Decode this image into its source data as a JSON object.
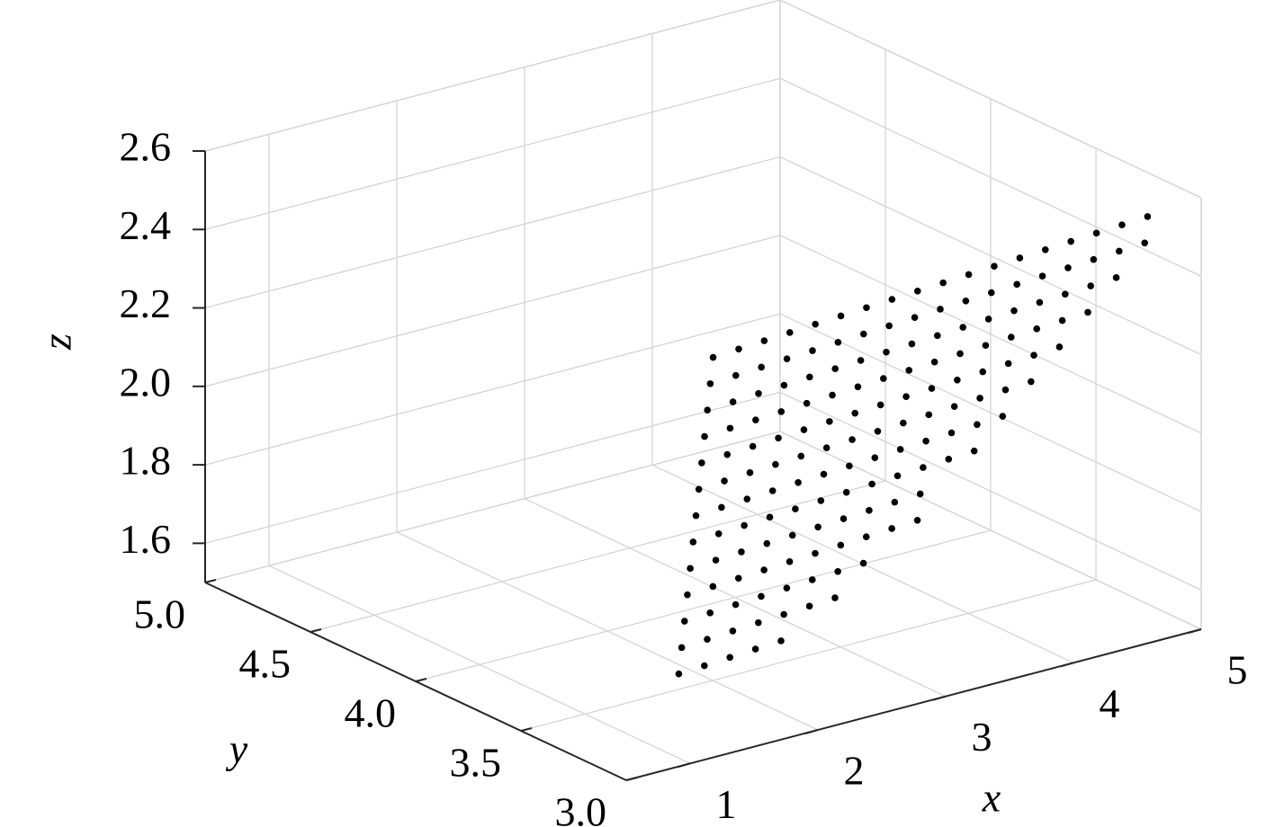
{
  "chart_data": {
    "type": "scatter3d",
    "color": "#000000",
    "grid": true,
    "xlabel": "x",
    "ylabel": "y",
    "zlabel": "z",
    "xlim": [
      0.5,
      5
    ],
    "ylim": [
      3,
      5
    ],
    "zlim": [
      1.5,
      2.6
    ],
    "xticks": [
      1,
      2,
      3,
      4,
      5
    ],
    "yticks": [
      {
        "value": 3,
        "label": "3.0"
      },
      3.5,
      {
        "value": 4,
        "label": "4.0"
      },
      4.5,
      {
        "value": 5,
        "label": "5.0"
      }
    ],
    "zticks": [
      1.6,
      1.8,
      {
        "value": 2,
        "label": "2.0"
      },
      2.2,
      2.4,
      2.6
    ],
    "x": [
      1.9,
      1.84,
      1.78,
      1.72,
      1.66,
      1.6,
      1.54,
      1.48,
      1.42,
      1.36,
      1.3,
      1.24,
      1.18,
      2.1,
      2.04,
      1.98,
      1.92,
      1.86,
      1.8,
      1.74,
      1.68,
      1.62,
      1.56,
      1.5,
      1.44,
      1.38,
      2.3,
      2.24,
      2.18,
      2.12,
      2.06,
      2,
      1.94,
      1.88,
      1.82,
      1.76,
      1.7,
      1.64,
      1.58,
      2.5,
      2.44,
      2.38,
      2.32,
      2.26,
      2.2,
      2.14,
      2.08,
      2.02,
      1.96,
      1.9,
      1.84,
      1.78,
      2.7,
      2.64,
      2.58,
      2.52,
      2.46,
      2.4,
      2.34,
      2.28,
      2.22,
      2.16,
      2.1,
      2.04,
      1.98,
      2.84,
      2.78,
      2.72,
      2.66,
      2.6,
      2.54,
      2.48,
      2.42,
      2.36,
      2.3,
      2.24,
      2.18,
      3.04,
      2.98,
      2.92,
      2.86,
      2.8,
      2.74,
      2.68,
      2.62,
      2.56,
      2.5,
      2.44,
      2.38,
      3.18,
      3.12,
      3.06,
      3,
      2.94,
      2.88,
      2.82,
      2.76,
      2.7,
      2.64,
      2.58,
      3.32,
      3.26,
      3.2,
      3.14,
      3.08,
      3.02,
      2.96,
      2.9,
      2.84,
      2.78,
      3.52,
      3.46,
      3.4,
      3.34,
      3.28,
      3.22,
      3.16,
      3.1,
      3.04,
      2.98,
      3.6,
      3.54,
      3.48,
      3.42,
      3.36,
      3.3,
      3.24,
      3.18,
      3.8,
      3.74,
      3.68,
      3.62,
      3.56,
      3.5,
      3.44,
      3.38,
      3.94,
      3.88,
      3.82,
      3.76,
      3.7,
      3.64,
      3.58,
      4.08,
      4.02,
      3.96,
      3.9,
      3.84,
      3.78,
      4.22,
      4.16,
      4.1,
      4.04,
      3.98,
      4.36,
      4.3,
      4.24,
      4.18,
      4.5,
      4.44,
      4.38,
      4.64,
      4.58
    ],
    "y": [
      3.6,
      3.55,
      3.5,
      3.45,
      3.4,
      3.35,
      3.3,
      3.25,
      3.2,
      3.15,
      3.1,
      3.05,
      3,
      3.6,
      3.55,
      3.5,
      3.45,
      3.4,
      3.35,
      3.3,
      3.25,
      3.2,
      3.15,
      3.1,
      3.05,
      3,
      3.6,
      3.55,
      3.5,
      3.45,
      3.4,
      3.35,
      3.3,
      3.25,
      3.2,
      3.15,
      3.1,
      3.05,
      3,
      3.6,
      3.55,
      3.5,
      3.45,
      3.4,
      3.35,
      3.3,
      3.25,
      3.2,
      3.15,
      3.1,
      3.05,
      3,
      3.6,
      3.55,
      3.5,
      3.45,
      3.4,
      3.35,
      3.3,
      3.25,
      3.2,
      3.15,
      3.1,
      3.05,
      3,
      3.55,
      3.5,
      3.45,
      3.4,
      3.35,
      3.3,
      3.25,
      3.2,
      3.15,
      3.1,
      3.05,
      3,
      3.55,
      3.5,
      3.45,
      3.4,
      3.35,
      3.3,
      3.25,
      3.2,
      3.15,
      3.1,
      3.05,
      3,
      3.5,
      3.45,
      3.4,
      3.35,
      3.3,
      3.25,
      3.2,
      3.15,
      3.1,
      3.05,
      3,
      3.45,
      3.4,
      3.35,
      3.3,
      3.25,
      3.2,
      3.15,
      3.1,
      3.05,
      3,
      3.45,
      3.4,
      3.35,
      3.3,
      3.25,
      3.2,
      3.15,
      3.1,
      3.05,
      3,
      3.35,
      3.3,
      3.25,
      3.2,
      3.15,
      3.1,
      3.05,
      3,
      3.35,
      3.3,
      3.25,
      3.2,
      3.15,
      3.1,
      3.05,
      3,
      3.3,
      3.25,
      3.2,
      3.15,
      3.1,
      3.05,
      3,
      3.25,
      3.2,
      3.15,
      3.1,
      3.05,
      3,
      3.2,
      3.15,
      3.1,
      3.05,
      3,
      3.15,
      3.1,
      3.05,
      3,
      3.1,
      3.05,
      3,
      3.05,
      3
    ],
    "z": [
      1.5,
      1.585,
      1.67,
      1.755,
      1.84,
      1.925,
      2.01,
      2.095,
      2.18,
      2.265,
      2.35,
      2.435,
      2.52,
      1.504,
      1.589,
      1.674,
      1.759,
      1.844,
      1.929,
      2.014,
      2.099,
      2.184,
      2.269,
      2.354,
      2.439,
      2.524,
      1.508,
      1.593,
      1.678,
      1.763,
      1.848,
      1.933,
      2.018,
      2.103,
      2.188,
      2.273,
      2.358,
      2.443,
      2.528,
      1.512,
      1.597,
      1.682,
      1.767,
      1.852,
      1.937,
      2.022,
      2.107,
      2.192,
      2.277,
      2.362,
      2.447,
      2.532,
      1.516,
      1.601,
      1.686,
      1.771,
      1.856,
      1.941,
      2.026,
      2.111,
      2.196,
      2.281,
      2.366,
      2.451,
      2.536,
      1.605,
      1.69,
      1.775,
      1.86,
      1.945,
      2.03,
      2.115,
      2.2,
      2.285,
      2.37,
      2.455,
      2.54,
      1.609,
      1.694,
      1.779,
      1.864,
      1.949,
      2.034,
      2.119,
      2.204,
      2.289,
      2.374,
      2.459,
      2.544,
      1.698,
      1.783,
      1.868,
      1.953,
      2.038,
      2.123,
      2.208,
      2.293,
      2.378,
      2.463,
      2.548,
      1.787,
      1.872,
      1.957,
      2.042,
      2.127,
      2.212,
      2.297,
      2.382,
      2.467,
      2.552,
      1.791,
      1.876,
      1.961,
      2.046,
      2.131,
      2.216,
      2.301,
      2.386,
      2.471,
      2.556,
      1.965,
      2.05,
      2.135,
      2.22,
      2.305,
      2.39,
      2.475,
      2.56,
      1.969,
      2.054,
      2.139,
      2.224,
      2.309,
      2.394,
      2.479,
      2.564,
      2.058,
      2.143,
      2.228,
      2.313,
      2.398,
      2.483,
      2.568,
      2.147,
      2.232,
      2.317,
      2.402,
      2.487,
      2.572,
      2.236,
      2.321,
      2.406,
      2.491,
      2.576,
      2.325,
      2.41,
      2.495,
      2.58,
      2.414,
      2.499,
      2.584,
      2.503,
      2.588
    ]
  }
}
